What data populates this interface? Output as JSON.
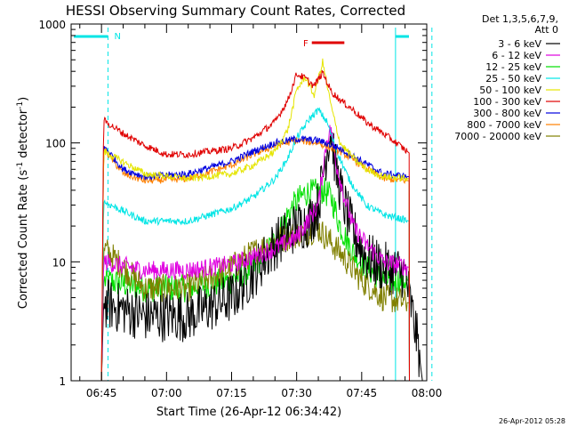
{
  "chart_data": {
    "type": "line",
    "title": "HESSI Observing Summary Count Rates, Corrected",
    "xlabel": "Start Time (26-Apr-12 06:34:42)",
    "ylabel": "Corrected Count Rate (s",
    "ylabel_sup1": "-1",
    "ylabel_mid": " detector",
    "ylabel_sup2": "-1",
    "ylabel_end": ")",
    "x_unit": "minutes since 06:00 UT",
    "xlim": [
      38,
      120
    ],
    "ylim": [
      1,
      1000
    ],
    "yscale": "log",
    "x_ticks": [
      {
        "v": 45,
        "label": "06:45"
      },
      {
        "v": 60,
        "label": "07:00"
      },
      {
        "v": 75,
        "label": "07:15"
      },
      {
        "v": 90,
        "label": "07:30"
      },
      {
        "v": 105,
        "label": "07:45"
      },
      {
        "v": 120,
        "label": "08:00"
      }
    ],
    "y_ticks": [
      {
        "v": 1,
        "label": "1"
      },
      {
        "v": 10,
        "label": "10"
      },
      {
        "v": 100,
        "label": "100"
      },
      {
        "v": 1000,
        "label": "1000"
      }
    ],
    "legend_title": "Det 1,3,5,6,7,9,",
    "legend_subtitle": "Att 0",
    "legend_position": "right",
    "timestamp": "26-Apr-2012 05:28",
    "annotations": [
      {
        "label": "N",
        "color": "#00e5e5"
      },
      {
        "label": "F",
        "color": "#e00000"
      }
    ],
    "series": [
      {
        "name": "3 - 6 keV",
        "color": "#000000",
        "points": [
          [
            45,
            1
          ],
          [
            45.5,
            4.5
          ],
          [
            55,
            3.5
          ],
          [
            65,
            3.5
          ],
          [
            75,
            5
          ],
          [
            80,
            8
          ],
          [
            85,
            14
          ],
          [
            90,
            20
          ],
          [
            93,
            22
          ],
          [
            95,
            30
          ],
          [
            97,
            90
          ],
          [
            98,
            130
          ],
          [
            99,
            60
          ],
          [
            101,
            30
          ],
          [
            103,
            18
          ],
          [
            106,
            11
          ],
          [
            110,
            9
          ],
          [
            115,
            8
          ],
          [
            118,
            2
          ],
          [
            119,
            1
          ]
        ]
      },
      {
        "name": "6 - 12 keV",
        "color": "#e000e0",
        "points": [
          [
            45,
            1
          ],
          [
            45.5,
            10
          ],
          [
            55,
            8.5
          ],
          [
            65,
            8.5
          ],
          [
            75,
            9.5
          ],
          [
            80,
            11
          ],
          [
            85,
            13
          ],
          [
            90,
            16
          ],
          [
            95,
            30
          ],
          [
            97,
            110
          ],
          [
            98,
            130
          ],
          [
            99,
            70
          ],
          [
            101,
            35
          ],
          [
            103,
            20
          ],
          [
            106,
            14
          ],
          [
            110,
            10
          ],
          [
            116,
            9
          ]
        ]
      },
      {
        "name": "12 - 25 keV",
        "color": "#00e000",
        "points": [
          [
            45,
            1
          ],
          [
            45.5,
            7
          ],
          [
            55,
            6
          ],
          [
            65,
            6
          ],
          [
            75,
            7
          ],
          [
            80,
            9
          ],
          [
            85,
            15
          ],
          [
            88,
            25
          ],
          [
            90,
            32
          ],
          [
            92,
            38
          ],
          [
            94,
            38
          ],
          [
            96,
            40
          ],
          [
            98,
            35
          ],
          [
            100,
            20
          ],
          [
            103,
            12
          ],
          [
            106,
            9
          ],
          [
            110,
            7
          ],
          [
            116,
            7
          ]
        ]
      },
      {
        "name": "25 - 50 keV",
        "color": "#00e5e5",
        "points": [
          [
            45,
            1
          ],
          [
            45.5,
            32
          ],
          [
            55,
            22
          ],
          [
            65,
            22
          ],
          [
            75,
            28
          ],
          [
            80,
            35
          ],
          [
            85,
            50
          ],
          [
            88,
            75
          ],
          [
            90,
            110
          ],
          [
            93,
            160
          ],
          [
            95,
            190
          ],
          [
            97,
            150
          ],
          [
            99,
            90
          ],
          [
            102,
            50
          ],
          [
            106,
            30
          ],
          [
            110,
            25
          ],
          [
            116,
            22
          ]
        ]
      },
      {
        "name": "50 - 100 keV",
        "color": "#e5e500",
        "points": [
          [
            45,
            1
          ],
          [
            45.5,
            85
          ],
          [
            55,
            55
          ],
          [
            65,
            50
          ],
          [
            75,
            55
          ],
          [
            80,
            65
          ],
          [
            85,
            85
          ],
          [
            88,
            130
          ],
          [
            90,
            280
          ],
          [
            92,
            360
          ],
          [
            94,
            250
          ],
          [
            96,
            480
          ],
          [
            98,
            200
          ],
          [
            100,
            100
          ],
          [
            103,
            75
          ],
          [
            106,
            60
          ],
          [
            110,
            52
          ],
          [
            116,
            50
          ]
        ]
      },
      {
        "name": "100 - 300 keV",
        "color": "#e00000",
        "points": [
          [
            45,
            1
          ],
          [
            45.5,
            155
          ],
          [
            50,
            120
          ],
          [
            55,
            95
          ],
          [
            60,
            80
          ],
          [
            65,
            80
          ],
          [
            70,
            85
          ],
          [
            75,
            90
          ],
          [
            80,
            110
          ],
          [
            85,
            150
          ],
          [
            88,
            230
          ],
          [
            90,
            380
          ],
          [
            92,
            350
          ],
          [
            94,
            300
          ],
          [
            96,
            390
          ],
          [
            98,
            270
          ],
          [
            100,
            230
          ],
          [
            103,
            190
          ],
          [
            106,
            150
          ],
          [
            110,
            120
          ],
          [
            113,
            100
          ],
          [
            116,
            82
          ]
        ]
      },
      {
        "name": "300 - 800 keV",
        "color": "#0000e0",
        "points": [
          [
            45,
            1
          ],
          [
            45.5,
            95
          ],
          [
            50,
            60
          ],
          [
            55,
            52
          ],
          [
            65,
            55
          ],
          [
            75,
            70
          ],
          [
            80,
            85
          ],
          [
            85,
            100
          ],
          [
            90,
            108
          ],
          [
            95,
            105
          ],
          [
            100,
            90
          ],
          [
            105,
            70
          ],
          [
            110,
            55
          ],
          [
            116,
            52
          ]
        ]
      },
      {
        "name": "800 - 7000 keV",
        "color": "#ff8000",
        "points": [
          [
            45,
            1
          ],
          [
            45.5,
            90
          ],
          [
            50,
            55
          ],
          [
            55,
            48
          ],
          [
            65,
            50
          ],
          [
            75,
            65
          ],
          [
            80,
            80
          ],
          [
            85,
            95
          ],
          [
            90,
            105
          ],
          [
            95,
            100
          ],
          [
            100,
            85
          ],
          [
            105,
            65
          ],
          [
            110,
            50
          ],
          [
            116,
            48
          ]
        ]
      },
      {
        "name": "7000 - 20000 keV",
        "color": "#808000",
        "points": [
          [
            45,
            1
          ],
          [
            45.5,
            13
          ],
          [
            55,
            6
          ],
          [
            65,
            6
          ],
          [
            75,
            9
          ],
          [
            80,
            12
          ],
          [
            85,
            15
          ],
          [
            90,
            17
          ],
          [
            95,
            19
          ],
          [
            100,
            12
          ],
          [
            105,
            7
          ],
          [
            110,
            5
          ],
          [
            116,
            4.5
          ]
        ]
      }
    ]
  }
}
